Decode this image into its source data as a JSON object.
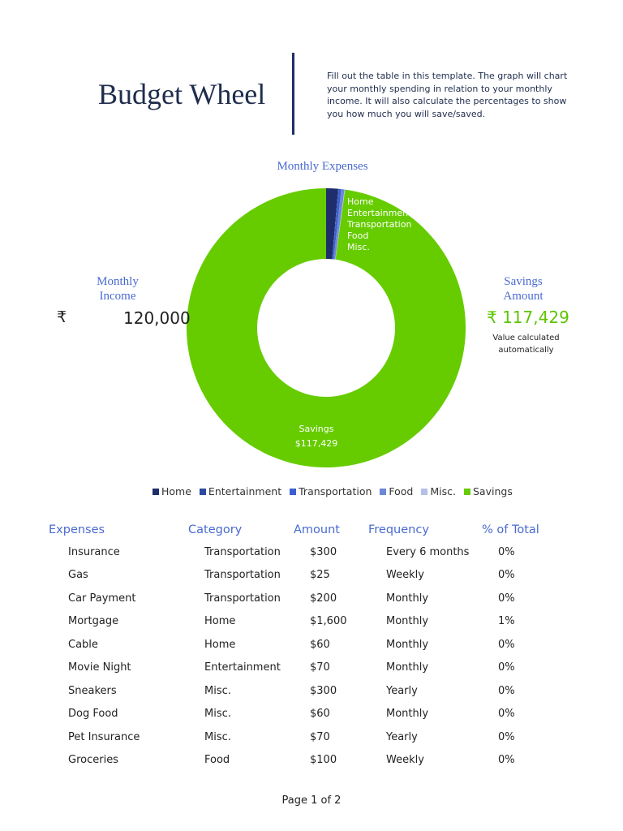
{
  "header": {
    "title": "Budget Wheel",
    "description": "Fill out the table in this template. The graph will chart your monthly spending in relation to your monthly income. It will also calculate the percentages to show you how much you will save/saved."
  },
  "income": {
    "label": "Monthly Income",
    "symbol": "₹",
    "value": "120,000"
  },
  "savings": {
    "label": "Savings Amount",
    "value": "₹  117,429",
    "note": "Value calculated automatically"
  },
  "chart_data": {
    "type": "pie",
    "title": "Monthly Expenses",
    "donut": true,
    "categories": [
      "Home",
      "Entertainment",
      "Transportation",
      "Food",
      "Misc.",
      "Savings"
    ],
    "values": [
      1660,
      70,
      358,
      433,
      91,
      117429
    ],
    "colors": [
      "#1f2d6b",
      "#2e4a9e",
      "#3a5fd0",
      "#6b88d6",
      "#b4c0e8",
      "#66cc00"
    ],
    "data_labels": [
      "Home",
      "Entertainment",
      "Transportation",
      "Food",
      "Misc.",
      "Savings $117,429"
    ],
    "legend": "bottom"
  },
  "table": {
    "headers": [
      "Expenses",
      "Category",
      "Amount",
      "Frequency",
      "% of Total"
    ],
    "rows": [
      [
        "Insurance",
        "Transportation",
        "$300",
        "Every 6 months",
        "0%"
      ],
      [
        "Gas",
        "Transportation",
        "$25",
        "Weekly",
        "0%"
      ],
      [
        "Car Payment",
        "Transportation",
        "$200",
        "Monthly",
        "0%"
      ],
      [
        "Mortgage",
        "Home",
        "$1,600",
        "Monthly",
        "1%"
      ],
      [
        "Cable",
        "Home",
        "$60",
        "Monthly",
        "0%"
      ],
      [
        "Movie Night",
        "Entertainment",
        "$70",
        "Monthly",
        "0%"
      ],
      [
        "Sneakers",
        "Misc.",
        "$300",
        "Yearly",
        "0%"
      ],
      [
        "Dog Food",
        "Misc.",
        "$60",
        "Monthly",
        "0%"
      ],
      [
        "Pet Insurance",
        "Misc.",
        "$70",
        "Yearly",
        "0%"
      ],
      [
        "Groceries",
        "Food",
        "$100",
        "Weekly",
        "0%"
      ]
    ]
  },
  "footer": {
    "page": "Page 1 of 2"
  }
}
